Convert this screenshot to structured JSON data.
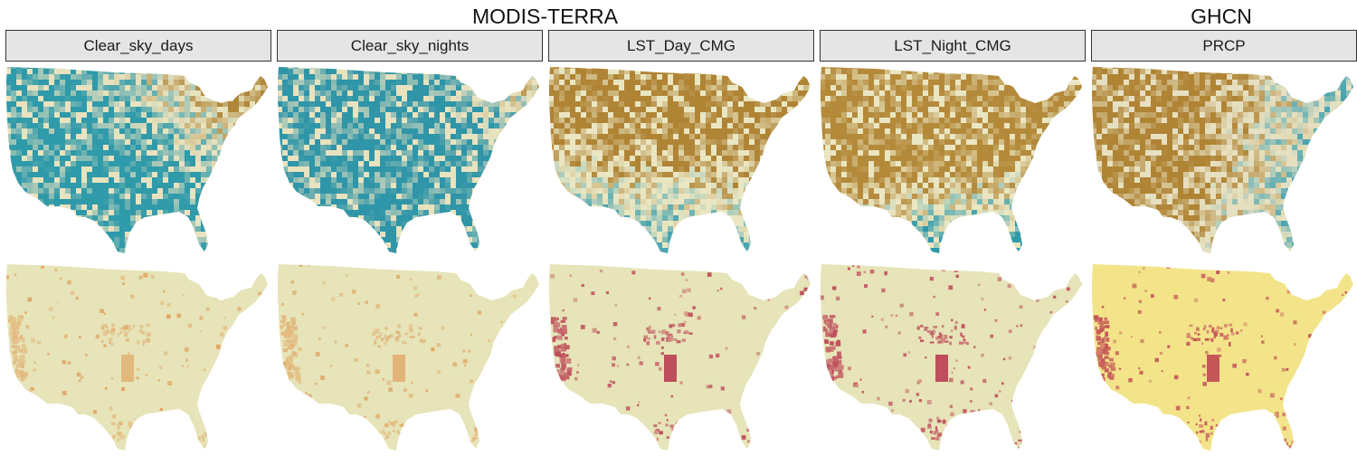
{
  "groups": [
    {
      "id": "modis",
      "title": "MODIS-TERRA"
    },
    {
      "id": "ghcn",
      "title": "GHCN"
    }
  ],
  "panels": [
    {
      "id": "clear-sky-days",
      "label": "Clear_sky_days",
      "group": "modis",
      "top_palette": {
        "base": "#2f9aaa",
        "accent": "#b0873a",
        "mid": "#e8e2bf",
        "style": "mixed-ne"
      },
      "bottom": {
        "base": "#e6e4b8",
        "hotspot": "#e0944c",
        "hot_intensity": 0.55
      }
    },
    {
      "id": "clear-sky-nights",
      "label": "Clear_sky_nights",
      "group": "modis",
      "top_palette": {
        "base": "#2f95a8",
        "accent": "#b0873a",
        "mid": "#e8e2bf",
        "style": "mostly-teal"
      },
      "bottom": {
        "base": "#e6e4b8",
        "hotspot": "#e0944c",
        "hot_intensity": 0.6
      }
    },
    {
      "id": "lst-day-cmg",
      "label": "LST_Day_CMG",
      "group": "modis",
      "top_palette": {
        "base": "#b08435",
        "accent": "#4aa5b0",
        "mid": "#eae6c2",
        "style": "north-brown"
      },
      "bottom": {
        "base": "#e6e4b8",
        "hotspot": "#b8324a",
        "hot_intensity": 0.85
      }
    },
    {
      "id": "lst-night-cmg",
      "label": "LST_Night_CMG",
      "group": "modis",
      "top_palette": {
        "base": "#b48a3a",
        "accent": "#2f9aaa",
        "mid": "#eae6c2",
        "style": "north-brown-south-teal"
      },
      "bottom": {
        "base": "#e6e4b8",
        "hotspot": "#b8324a",
        "hot_intensity": 0.85
      }
    },
    {
      "id": "prcp",
      "label": "PRCP",
      "group": "ghcn",
      "top_palette": {
        "base": "#b08435",
        "accent": "#4aa5b0",
        "mid": "#e6e0c0",
        "style": "west-brown-east-teal"
      },
      "bottom": {
        "base": "#f3e48a",
        "hotspot": "#b8324a",
        "hot_intensity": 0.8
      }
    }
  ]
}
